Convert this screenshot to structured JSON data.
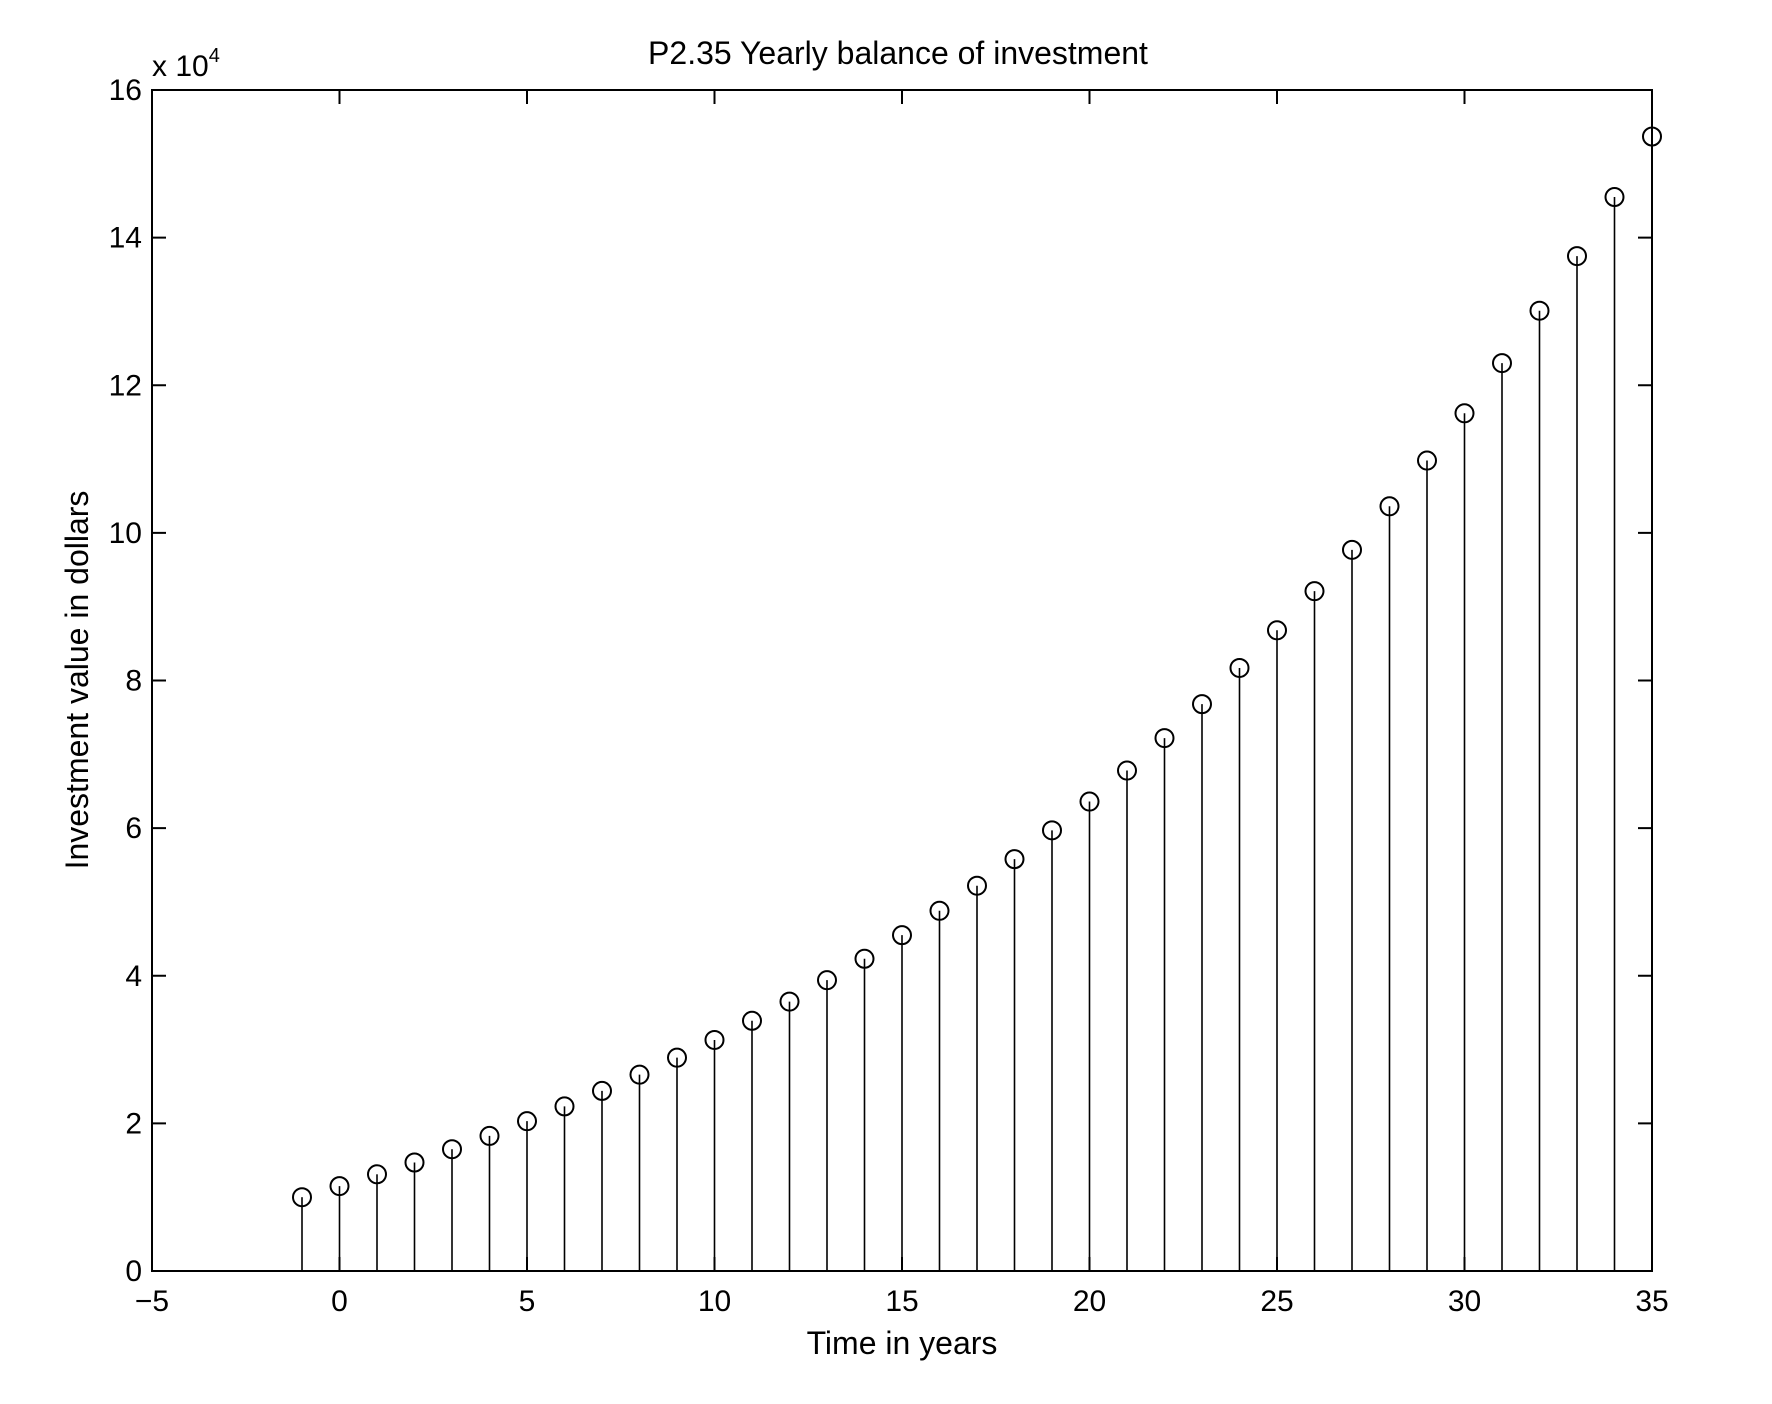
{
  "chart_data": {
    "type": "stem",
    "title": "P2.35 Yearly balance of investment",
    "xlabel": "Time in years",
    "ylabel": "Investment value in dollars",
    "y_exponent_label": {
      "base": "x 10",
      "exponent": "4"
    },
    "xlim": [
      -5,
      35
    ],
    "ylim": [
      0,
      16
    ],
    "y_scale_factor": 10000,
    "x_ticks": [
      -5,
      0,
      5,
      10,
      15,
      20,
      25,
      30,
      35
    ],
    "x_tick_labels": [
      "−5",
      "0",
      "5",
      "10",
      "15",
      "20",
      "25",
      "30",
      "35"
    ],
    "y_ticks": [
      0,
      2,
      4,
      6,
      8,
      10,
      12,
      14,
      16
    ],
    "y_tick_labels": [
      "0",
      "2",
      "4",
      "6",
      "8",
      "10",
      "12",
      "14",
      "16"
    ],
    "grid": false,
    "marker": "circle",
    "line_color": "#000000",
    "x": [
      -1,
      0,
      1,
      2,
      3,
      4,
      5,
      6,
      7,
      8,
      9,
      10,
      11,
      12,
      13,
      14,
      15,
      16,
      17,
      18,
      19,
      20,
      21,
      22,
      23,
      24,
      25,
      26,
      27,
      28,
      29,
      30,
      31,
      32,
      33,
      34,
      35
    ],
    "values": [
      1.0,
      1.15,
      1.31,
      1.47,
      1.65,
      1.83,
      2.03,
      2.23,
      2.44,
      2.66,
      2.89,
      3.13,
      3.39,
      3.65,
      3.94,
      4.23,
      4.55,
      4.88,
      5.22,
      5.58,
      5.97,
      6.36,
      6.78,
      7.22,
      7.68,
      8.17,
      8.68,
      9.21,
      9.77,
      10.36,
      10.98,
      11.62,
      12.3,
      13.01,
      13.75,
      14.55,
      15.37
    ]
  }
}
